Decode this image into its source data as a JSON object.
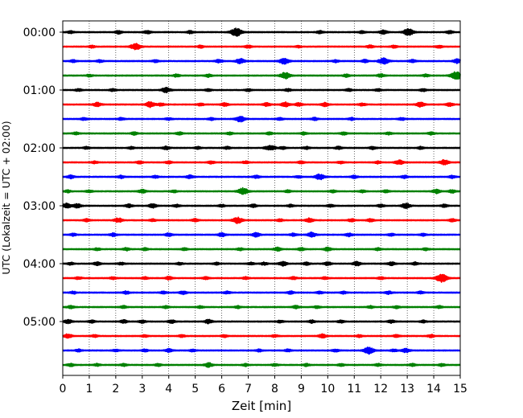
{
  "chart_data": {
    "type": "line",
    "subtype": "seismic helicorder (drum plot)",
    "xlabel": "Zeit  [min]",
    "ylabel": "UTC (Lokalzeit = UTC + 02:00)",
    "xlim": [
      0,
      15
    ],
    "x_ticks": [
      "0",
      "1",
      "2",
      "3",
      "4",
      "5",
      "6",
      "7",
      "8",
      "9",
      "10",
      "11",
      "12",
      "13",
      "14",
      "15"
    ],
    "y_tick_labels": [
      "00:00",
      "01:00",
      "02:00",
      "03:00",
      "04:00",
      "05:00"
    ],
    "row_interval_minutes": 15,
    "grid": "vertical dotted lines at each minute",
    "trace_colors_cycle": [
      "#000000",
      "#ff0000",
      "#0000ff",
      "#008000"
    ],
    "rows": [
      "00:00",
      "00:15",
      "00:30",
      "00:45",
      "01:00",
      "01:15",
      "01:30",
      "01:45",
      "02:00",
      "02:15",
      "02:30",
      "02:45",
      "03:00",
      "03:15",
      "03:30",
      "03:45",
      "04:00",
      "04:15",
      "04:30",
      "04:45",
      "05:00",
      "05:15",
      "05:30",
      "05:45"
    ],
    "bursts": [
      [
        [
          0.3,
          0.3
        ],
        [
          2.1,
          0.4
        ],
        [
          3.2,
          0.4
        ],
        [
          4.8,
          0.35
        ],
        [
          6.55,
          1.0
        ],
        [
          9.7,
          0.35
        ],
        [
          11.3,
          0.3
        ],
        [
          12.1,
          0.5
        ],
        [
          13.05,
          0.85
        ],
        [
          14.6,
          0.35
        ]
      ],
      [
        [
          1.1,
          0.3
        ],
        [
          2.75,
          0.8
        ],
        [
          5.2,
          0.3
        ],
        [
          7.0,
          0.35
        ],
        [
          8.9,
          0.25
        ],
        [
          11.6,
          0.35
        ],
        [
          12.5,
          0.3
        ],
        [
          14.2,
          0.3
        ]
      ],
      [
        [
          0.4,
          0.3
        ],
        [
          1.4,
          0.3
        ],
        [
          3.5,
          0.3
        ],
        [
          5.9,
          0.4
        ],
        [
          6.7,
          0.65
        ],
        [
          8.35,
          0.75
        ],
        [
          10.3,
          0.3
        ],
        [
          11.4,
          0.35
        ],
        [
          12.0,
          0.3
        ],
        [
          12.15,
          0.65
        ],
        [
          13.2,
          0.35
        ],
        [
          14.9,
          0.55
        ]
      ],
      [
        [
          1.0,
          0.3
        ],
        [
          4.3,
          0.35
        ],
        [
          5.5,
          0.35
        ],
        [
          8.4,
          0.8
        ],
        [
          10.7,
          0.35
        ],
        [
          12.0,
          0.4
        ],
        [
          13.7,
          0.3
        ],
        [
          14.85,
          1.0
        ]
      ],
      [
        [
          0.6,
          0.3
        ],
        [
          1.9,
          0.3
        ],
        [
          3.9,
          0.65
        ],
        [
          5.5,
          0.3
        ],
        [
          7.0,
          0.3
        ],
        [
          8.5,
          0.3
        ],
        [
          10.8,
          0.3
        ],
        [
          11.9,
          0.3
        ],
        [
          13.6,
          0.3
        ]
      ],
      [
        [
          1.3,
          0.5
        ],
        [
          3.3,
          0.7
        ],
        [
          3.7,
          0.4
        ],
        [
          5.2,
          0.3
        ],
        [
          6.1,
          0.45
        ],
        [
          7.7,
          0.45
        ],
        [
          8.4,
          0.55
        ],
        [
          8.9,
          0.45
        ],
        [
          9.9,
          0.45
        ],
        [
          11.3,
          0.35
        ],
        [
          13.5,
          0.6
        ],
        [
          14.6,
          0.4
        ]
      ],
      [
        [
          0.8,
          0.3
        ],
        [
          2.2,
          0.3
        ],
        [
          4.0,
          0.3
        ],
        [
          5.6,
          0.3
        ],
        [
          6.7,
          0.7
        ],
        [
          8.2,
          0.3
        ],
        [
          9.5,
          0.35
        ],
        [
          10.9,
          0.3
        ],
        [
          12.8,
          0.3
        ]
      ],
      [
        [
          0.5,
          0.3
        ],
        [
          2.7,
          0.35
        ],
        [
          4.4,
          0.35
        ],
        [
          6.3,
          0.3
        ],
        [
          7.8,
          0.3
        ],
        [
          9.1,
          0.3
        ],
        [
          10.6,
          0.35
        ],
        [
          12.3,
          0.3
        ],
        [
          13.9,
          0.35
        ]
      ],
      [
        [
          0.9,
          0.3
        ],
        [
          2.6,
          0.3
        ],
        [
          3.9,
          0.4
        ],
        [
          5.1,
          0.3
        ],
        [
          6.2,
          0.3
        ],
        [
          7.7,
          0.3
        ],
        [
          7.9,
          0.55
        ],
        [
          8.3,
          0.3
        ],
        [
          9.2,
          0.3
        ],
        [
          10.4,
          0.35
        ],
        [
          11.7,
          0.35
        ],
        [
          13.5,
          0.3
        ]
      ],
      [
        [
          1.2,
          0.3
        ],
        [
          2.9,
          0.35
        ],
        [
          4.0,
          0.3
        ],
        [
          5.6,
          0.35
        ],
        [
          6.9,
          0.3
        ],
        [
          9.0,
          0.3
        ],
        [
          10.5,
          0.3
        ],
        [
          11.9,
          0.3
        ],
        [
          12.7,
          0.55
        ],
        [
          14.4,
          0.65
        ]
      ],
      [
        [
          0.3,
          0.4
        ],
        [
          2.2,
          0.35
        ],
        [
          3.5,
          0.3
        ],
        [
          4.8,
          0.4
        ],
        [
          7.3,
          0.35
        ],
        [
          8.9,
          0.3
        ],
        [
          9.7,
          0.7
        ],
        [
          11.0,
          0.35
        ],
        [
          12.9,
          0.35
        ],
        [
          14.7,
          0.35
        ]
      ],
      [
        [
          0.2,
          0.3
        ],
        [
          1.0,
          0.3
        ],
        [
          3.0,
          0.45
        ],
        [
          4.2,
          0.3
        ],
        [
          6.8,
          0.85
        ],
        [
          8.5,
          0.3
        ],
        [
          10.2,
          0.3
        ],
        [
          11.3,
          0.3
        ],
        [
          12.2,
          0.3
        ],
        [
          14.1,
          0.5
        ],
        [
          14.7,
          0.4
        ]
      ],
      [
        [
          0.15,
          0.6
        ],
        [
          0.55,
          0.5
        ],
        [
          2.5,
          0.4
        ],
        [
          3.4,
          0.5
        ],
        [
          4.3,
          0.35
        ],
        [
          6.0,
          0.3
        ],
        [
          7.2,
          0.35
        ],
        [
          8.6,
          0.3
        ],
        [
          10.1,
          0.35
        ],
        [
          12.0,
          0.35
        ],
        [
          12.95,
          0.65
        ],
        [
          14.4,
          0.35
        ]
      ],
      [
        [
          0.9,
          0.35
        ],
        [
          2.1,
          0.55
        ],
        [
          3.4,
          0.3
        ],
        [
          5.0,
          0.35
        ],
        [
          6.6,
          0.75
        ],
        [
          8.2,
          0.3
        ],
        [
          9.3,
          0.55
        ],
        [
          10.9,
          0.35
        ],
        [
          11.6,
          0.4
        ],
        [
          14.7,
          0.35
        ]
      ],
      [
        [
          0.4,
          0.3
        ],
        [
          1.9,
          0.4
        ],
        [
          4.0,
          0.4
        ],
        [
          6.0,
          0.45
        ],
        [
          7.3,
          0.5
        ],
        [
          8.7,
          0.35
        ],
        [
          9.4,
          0.6
        ],
        [
          10.8,
          0.4
        ],
        [
          12.4,
          0.3
        ],
        [
          13.6,
          0.3
        ]
      ],
      [
        [
          1.3,
          0.3
        ],
        [
          2.4,
          0.35
        ],
        [
          3.1,
          0.3
        ],
        [
          4.6,
          0.3
        ],
        [
          6.7,
          0.3
        ],
        [
          8.1,
          0.45
        ],
        [
          9.0,
          0.35
        ],
        [
          10.0,
          0.45
        ],
        [
          11.9,
          0.3
        ],
        [
          13.7,
          0.3
        ]
      ],
      [
        [
          0.3,
          0.3
        ],
        [
          1.3,
          0.4
        ],
        [
          2.2,
          0.3
        ],
        [
          4.4,
          0.3
        ],
        [
          5.8,
          0.3
        ],
        [
          7.1,
          0.3
        ],
        [
          7.6,
          0.35
        ],
        [
          8.3,
          0.55
        ],
        [
          9.2,
          0.35
        ],
        [
          10.0,
          0.4
        ],
        [
          11.1,
          0.5
        ],
        [
          12.4,
          0.45
        ],
        [
          13.3,
          0.35
        ]
      ],
      [
        [
          0.6,
          0.3
        ],
        [
          1.9,
          0.3
        ],
        [
          3.1,
          0.3
        ],
        [
          4.0,
          0.4
        ],
        [
          5.4,
          0.3
        ],
        [
          6.9,
          0.3
        ],
        [
          8.7,
          0.35
        ],
        [
          9.9,
          0.3
        ],
        [
          12.0,
          0.3
        ],
        [
          14.3,
          1.0
        ]
      ],
      [
        [
          0.4,
          0.3
        ],
        [
          2.4,
          0.35
        ],
        [
          3.8,
          0.3
        ],
        [
          4.55,
          0.4
        ],
        [
          6.2,
          0.3
        ],
        [
          8.6,
          0.35
        ],
        [
          9.7,
          0.3
        ],
        [
          10.6,
          0.3
        ],
        [
          12.3,
          0.35
        ],
        [
          13.5,
          0.3
        ]
      ],
      [
        [
          0.3,
          0.35
        ],
        [
          2.3,
          0.3
        ],
        [
          3.9,
          0.3
        ],
        [
          5.2,
          0.3
        ],
        [
          6.6,
          0.3
        ],
        [
          8.8,
          0.35
        ],
        [
          9.6,
          0.3
        ],
        [
          11.6,
          0.3
        ],
        [
          12.6,
          0.3
        ],
        [
          14.2,
          0.3
        ]
      ],
      [
        [
          0.2,
          0.5
        ],
        [
          1.1,
          0.35
        ],
        [
          2.3,
          0.4
        ],
        [
          3.0,
          0.35
        ],
        [
          4.1,
          0.4
        ],
        [
          5.5,
          0.5
        ],
        [
          8.2,
          0.3
        ],
        [
          9.4,
          0.35
        ],
        [
          10.5,
          0.3
        ],
        [
          12.4,
          0.35
        ],
        [
          13.6,
          0.3
        ]
      ],
      [
        [
          0.2,
          0.5
        ],
        [
          1.2,
          0.3
        ],
        [
          3.1,
          0.3
        ],
        [
          4.5,
          0.3
        ],
        [
          6.1,
          0.3
        ],
        [
          8.0,
          0.3
        ],
        [
          9.8,
          0.45
        ],
        [
          11.2,
          0.3
        ],
        [
          12.6,
          0.3
        ],
        [
          13.9,
          0.35
        ]
      ],
      [
        [
          0.6,
          0.3
        ],
        [
          2.0,
          0.3
        ],
        [
          3.1,
          0.3
        ],
        [
          4.0,
          0.4
        ],
        [
          4.9,
          0.3
        ],
        [
          7.4,
          0.3
        ],
        [
          8.5,
          0.3
        ],
        [
          10.3,
          0.3
        ],
        [
          11.55,
          0.85
        ],
        [
          12.5,
          0.3
        ],
        [
          12.95,
          0.5
        ]
      ],
      [
        [
          0.3,
          0.35
        ],
        [
          1.3,
          0.3
        ],
        [
          2.3,
          0.3
        ],
        [
          3.6,
          0.3
        ],
        [
          5.5,
          0.55
        ],
        [
          6.9,
          0.3
        ],
        [
          8.0,
          0.3
        ],
        [
          9.2,
          0.3
        ],
        [
          10.5,
          0.3
        ],
        [
          11.9,
          0.3
        ],
        [
          13.2,
          0.3
        ],
        [
          14.3,
          0.3
        ]
      ]
    ]
  }
}
